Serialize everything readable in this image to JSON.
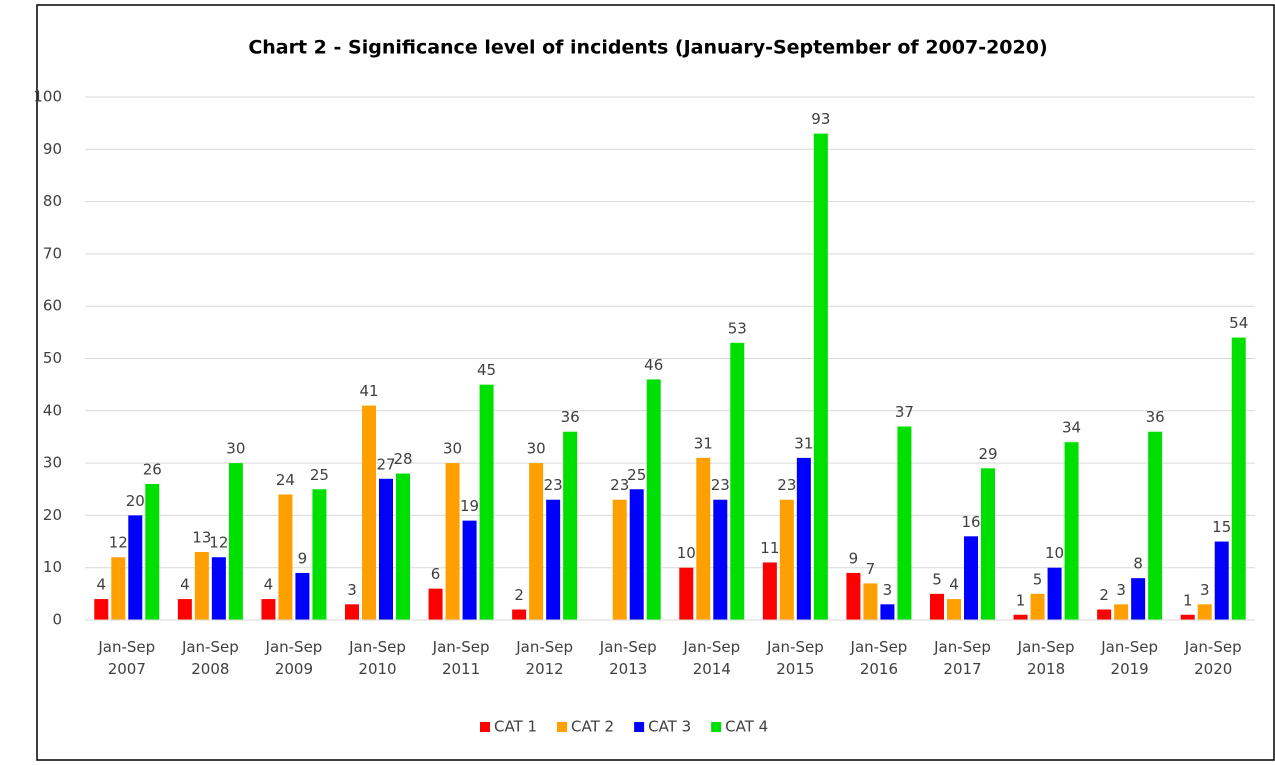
{
  "chart_data": {
    "type": "bar",
    "title": "Chart 2 - Significance level of incidents (January-September of 2007-2020)",
    "categories": [
      "Jan-Sep 2007",
      "Jan-Sep 2008",
      "Jan-Sep 2009",
      "Jan-Sep 2010",
      "Jan-Sep 2011",
      "Jan-Sep 2012",
      "Jan-Sep 2013",
      "Jan-Sep 2014",
      "Jan-Sep 2015",
      "Jan-Sep 2016",
      "Jan-Sep 2017",
      "Jan-Sep 2018",
      "Jan-Sep 2019",
      "Jan-Sep 2020"
    ],
    "series": [
      {
        "name": "CAT 1",
        "color": "#ff0000",
        "values": [
          4,
          4,
          4,
          3,
          6,
          2,
          null,
          10,
          11,
          9,
          5,
          1,
          2,
          1
        ]
      },
      {
        "name": "CAT 2",
        "color": "#ffa000",
        "values": [
          12,
          13,
          24,
          41,
          30,
          30,
          23,
          31,
          23,
          7,
          4,
          5,
          3,
          3
        ]
      },
      {
        "name": "CAT 3",
        "color": "#0000ff",
        "values": [
          20,
          12,
          9,
          27,
          19,
          23,
          25,
          23,
          31,
          3,
          16,
          10,
          8,
          15
        ]
      },
      {
        "name": "CAT 4",
        "color": "#00e000",
        "values": [
          26,
          30,
          25,
          28,
          45,
          36,
          46,
          53,
          93,
          37,
          29,
          34,
          36,
          54
        ]
      }
    ],
    "ylim": [
      0,
      100
    ],
    "yticks": [
      0,
      10,
      20,
      30,
      40,
      50,
      60,
      70,
      80,
      90,
      100
    ],
    "grid": true,
    "legend": "bottom"
  }
}
